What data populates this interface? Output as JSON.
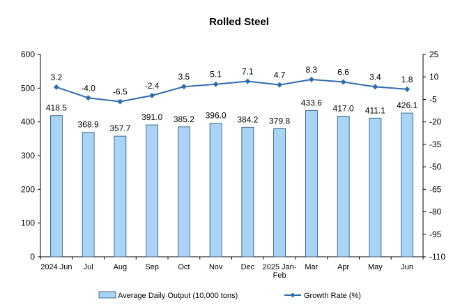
{
  "chart_data": {
    "type": "bar",
    "title": "Rolled Steel",
    "categories": [
      "2024 Jun",
      "Jul",
      "Aug",
      "Sep",
      "Oct",
      "Nov",
      "Dec",
      "2025 Jan-\nFeb",
      "Mar",
      "Apr",
      "May",
      "Jun"
    ],
    "series": [
      {
        "name": "Average Daily Output (10,000 tons)",
        "type": "bar",
        "axis": "left",
        "values": [
          418.5,
          368.9,
          357.7,
          391.0,
          385.2,
          396.0,
          384.2,
          379.8,
          433.6,
          417.0,
          411.1,
          426.1
        ],
        "labels": [
          "418.5",
          "368.9",
          "357.7",
          "391.0",
          "385.2",
          "396.0",
          "384.2",
          "379.8",
          "433.6",
          "417.0",
          "411.1",
          "426.1"
        ]
      },
      {
        "name": "Growth Rate (%)",
        "type": "line",
        "axis": "right",
        "values": [
          3.2,
          -4.0,
          -6.5,
          -2.4,
          3.5,
          5.1,
          7.1,
          4.7,
          8.3,
          6.6,
          3.4,
          1.8
        ],
        "labels": [
          "3.2",
          "-4.0",
          "-6.5",
          "-2.4",
          "3.5",
          "5.1",
          "7.1",
          "4.7",
          "8.3",
          "6.6",
          "3.4",
          "1.8"
        ]
      }
    ],
    "y_left": {
      "min": 0,
      "max": 600,
      "ticks": [
        0,
        100,
        200,
        300,
        400,
        500,
        600
      ]
    },
    "y_right": {
      "min": -110,
      "max": 25,
      "ticks": [
        25,
        10,
        -5,
        -20,
        -35,
        -50,
        -65,
        -80,
        -95,
        -110
      ]
    },
    "grid": false,
    "legend_position": "bottom",
    "colors": {
      "bar_fill": "#a9d4f5",
      "bar_stroke": "#1f4e79",
      "line": "#2e6bb0",
      "axis": "#000000"
    }
  }
}
